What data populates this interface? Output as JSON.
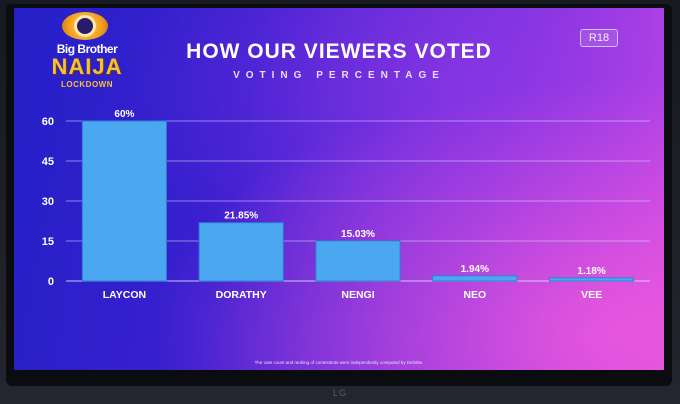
{
  "logo": {
    "line1": "Big Brother",
    "line2": "NAIJA",
    "line3": "LOCKDOWN"
  },
  "title": "HOW OUR VIEWERS VOTED",
  "subtitle": "VOTING PERCENTAGE",
  "rating": "R18",
  "footnote": "The vote count and ranking of contestants were independently computed by Deloitte.",
  "tv_brand": "LG",
  "colors": {
    "bar": "#4ba8f0",
    "bar_stroke": "#2b82d4",
    "grid": "#d8d0ff",
    "text": "#ffffff"
  },
  "chart_data": {
    "type": "bar",
    "title": "HOW OUR VIEWERS VOTED",
    "subtitle": "VOTING PERCENTAGE",
    "categories": [
      "LAYCON",
      "DORATHY",
      "NENGI",
      "NEO",
      "VEE"
    ],
    "values": [
      60,
      21.85,
      15.03,
      1.94,
      1.18
    ],
    "data_labels": [
      "60%",
      "21.85%",
      "15.03%",
      "1.94%",
      "1.18%"
    ],
    "yticks": [
      0,
      15,
      30,
      45,
      60
    ],
    "ylim": [
      0,
      60
    ],
    "xlabel": "",
    "ylabel": "",
    "grid": true
  }
}
